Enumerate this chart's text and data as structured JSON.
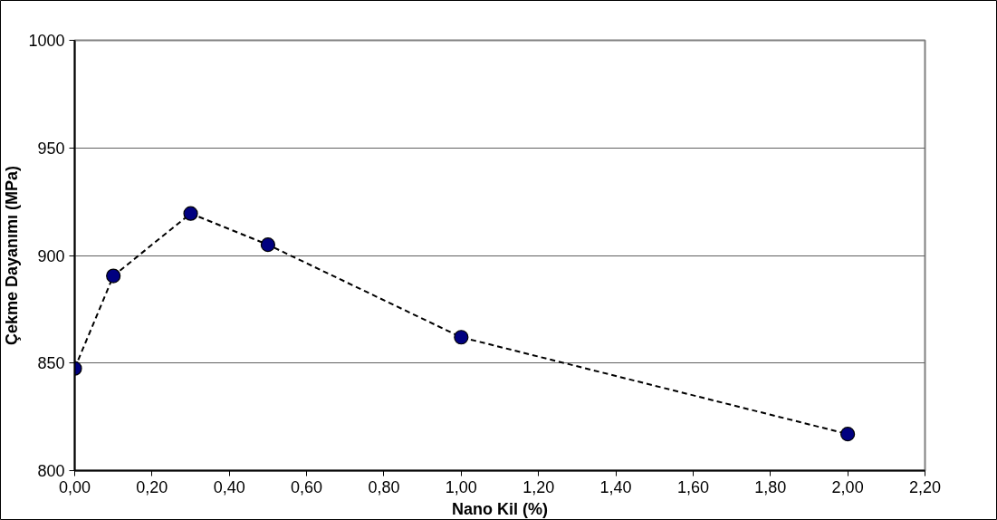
{
  "chart_data": {
    "type": "line",
    "xlabel": "Nano Kil (%)",
    "ylabel": "Çekme Dayanımı (MPa)",
    "x": [
      0,
      0.1,
      0.3,
      0.5,
      1.0,
      2.0
    ],
    "series": [
      {
        "color": "#000080",
        "values": [
          847.5,
          890.5,
          919.5,
          905,
          862,
          817
        ]
      }
    ],
    "xlim": [
      0,
      2.2
    ],
    "ylim": [
      800,
      1000
    ],
    "xticks": [
      {
        "value": 0,
        "label": "0,00"
      },
      {
        "value": 0.2,
        "label": "0,20"
      },
      {
        "value": 0.4,
        "label": "0,40"
      },
      {
        "value": 0.6,
        "label": "0,60"
      },
      {
        "value": 0.8,
        "label": "0,80"
      },
      {
        "value": 1.0,
        "label": "1,00"
      },
      {
        "value": 1.2,
        "label": "1,20"
      },
      {
        "value": 1.4,
        "label": "1,40"
      },
      {
        "value": 1.6,
        "label": "1,60"
      },
      {
        "value": 1.8,
        "label": "1,80"
      },
      {
        "value": 2.0,
        "label": "2,00"
      },
      {
        "value": 2.2,
        "label": "2,20"
      }
    ],
    "yticks": [
      800,
      850,
      900,
      950,
      1000
    ],
    "grid": "y",
    "marker": "circle",
    "line_style": "dashed"
  }
}
